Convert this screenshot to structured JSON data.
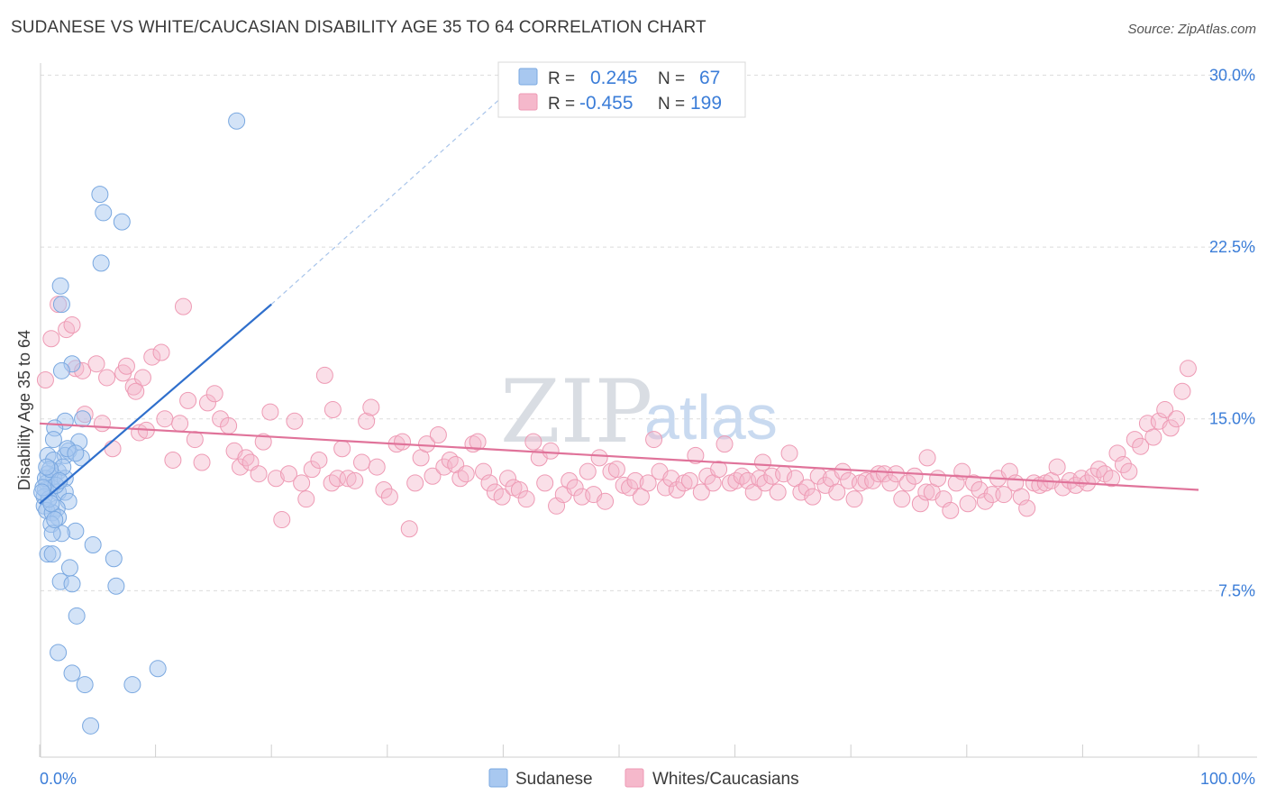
{
  "header": {
    "title": "SUDANESE VS WHITE/CAUCASIAN DISABILITY AGE 35 TO 64 CORRELATION CHART",
    "source": "Source: ZipAtlas.com"
  },
  "watermark": {
    "zip": "ZIP",
    "atlas": "atlas"
  },
  "stats": [
    {
      "r_label": "R =",
      "r_value": "0.245",
      "n_label": "N =",
      "n_value": "67",
      "color": "#a8c8f0"
    },
    {
      "r_label": "R =",
      "r_value": "-0.455",
      "n_label": "N =",
      "n_value": "199",
      "color": "#f5b8cb"
    }
  ],
  "chart_data": {
    "type": "scatter",
    "title": "SUDANESE VS WHITE/CAUCASIAN DISABILITY AGE 35 TO 64 CORRELATION CHART",
    "xlabel": "",
    "ylabel": "Disability Age 35 to 64",
    "xlim": [
      0,
      100
    ],
    "ylim": [
      0,
      31
    ],
    "x_tick_labels": [
      "0.0%",
      "100.0%"
    ],
    "y_ticks": [
      7.5,
      15.0,
      22.5,
      30.0
    ],
    "y_tick_labels": [
      "7.5%",
      "15.0%",
      "22.5%",
      "30.0%"
    ],
    "grid": true,
    "legend_position": "bottom",
    "series": [
      {
        "name": "Sudanese",
        "color": "#a8c8f0",
        "stroke": "#7aa8e0",
        "trend": {
          "x": [
            0,
            20
          ],
          "y": [
            11.3,
            20.0
          ],
          "color": "#2f6fcc",
          "dashed_extension_to": [
            42,
            30.0
          ]
        },
        "points": [
          [
            17,
            28
          ],
          [
            5.2,
            24.8
          ],
          [
            5.5,
            24.0
          ],
          [
            7.1,
            23.6
          ],
          [
            5.3,
            21.8
          ],
          [
            1.8,
            20.8
          ],
          [
            1.9,
            20.0
          ],
          [
            2.8,
            17.4
          ],
          [
            1.9,
            17.1
          ],
          [
            2.2,
            14.9
          ],
          [
            3.7,
            15.0
          ],
          [
            1.3,
            14.6
          ],
          [
            1.2,
            14.1
          ],
          [
            3.4,
            14.0
          ],
          [
            2.5,
            13.6
          ],
          [
            2.2,
            13.4
          ],
          [
            0.7,
            13.4
          ],
          [
            1.2,
            13.2
          ],
          [
            3.6,
            13.3
          ],
          [
            1.6,
            12.7
          ],
          [
            0.7,
            12.6
          ],
          [
            1.2,
            12.5
          ],
          [
            2.2,
            12.4
          ],
          [
            0.6,
            12.2
          ],
          [
            1.0,
            12.0
          ],
          [
            0.5,
            11.9
          ],
          [
            1.6,
            11.8
          ],
          [
            2.2,
            11.8
          ],
          [
            0.4,
            11.6
          ],
          [
            2.5,
            11.4
          ],
          [
            0.4,
            11.2
          ],
          [
            1.5,
            11.1
          ],
          [
            0.6,
            11.0
          ],
          [
            1.1,
            10.9
          ],
          [
            1.6,
            10.7
          ],
          [
            1.0,
            10.4
          ],
          [
            3.1,
            10.1
          ],
          [
            1.9,
            10.0
          ],
          [
            1.1,
            10.0
          ],
          [
            4.6,
            9.5
          ],
          [
            0.7,
            9.1
          ],
          [
            1.1,
            9.1
          ],
          [
            6.4,
            8.9
          ],
          [
            2.6,
            8.5
          ],
          [
            1.8,
            7.9
          ],
          [
            2.8,
            7.8
          ],
          [
            6.6,
            7.7
          ],
          [
            3.2,
            6.4
          ],
          [
            1.6,
            4.8
          ],
          [
            2.8,
            3.9
          ],
          [
            3.9,
            3.4
          ],
          [
            8.0,
            3.4
          ],
          [
            10.2,
            4.1
          ],
          [
            4.4,
            1.6
          ],
          [
            0.5,
            12.4
          ],
          [
            1.4,
            12.1
          ],
          [
            0.8,
            11.5
          ],
          [
            2.0,
            12.9
          ],
          [
            0.3,
            12.0
          ],
          [
            1.3,
            10.6
          ],
          [
            0.9,
            12.8
          ],
          [
            2.4,
            13.7
          ],
          [
            1.7,
            12.3
          ],
          [
            0.6,
            12.9
          ],
          [
            3.1,
            13.5
          ],
          [
            0.2,
            11.8
          ],
          [
            1.0,
            11.3
          ]
        ]
      },
      {
        "name": "Whites/Caucasians",
        "color": "#f5b8cb",
        "stroke": "#ee9ab4",
        "trend": {
          "x": [
            0,
            100
          ],
          "y": [
            14.8,
            11.9
          ],
          "color": "#e0739a"
        },
        "points": [
          [
            0.5,
            16.7
          ],
          [
            1.0,
            18.5
          ],
          [
            1.6,
            20.0
          ],
          [
            2.3,
            18.9
          ],
          [
            2.8,
            19.1
          ],
          [
            3.1,
            17.2
          ],
          [
            3.7,
            17.1
          ],
          [
            4.9,
            17.4
          ],
          [
            5.8,
            16.8
          ],
          [
            7.2,
            17.0
          ],
          [
            7.5,
            17.3
          ],
          [
            8.1,
            16.4
          ],
          [
            8.9,
            16.8
          ],
          [
            9.7,
            17.7
          ],
          [
            10.5,
            17.9
          ],
          [
            12.4,
            19.9
          ],
          [
            3.9,
            15.2
          ],
          [
            5.4,
            14.8
          ],
          [
            6.3,
            13.7
          ],
          [
            8.6,
            14.4
          ],
          [
            9.2,
            14.5
          ],
          [
            10.8,
            15.0
          ],
          [
            11.5,
            13.2
          ],
          [
            12.1,
            14.8
          ],
          [
            12.8,
            15.8
          ],
          [
            13.4,
            14.1
          ],
          [
            14.0,
            13.1
          ],
          [
            14.5,
            15.7
          ],
          [
            15.1,
            16.1
          ],
          [
            15.6,
            15.0
          ],
          [
            16.3,
            14.7
          ],
          [
            16.8,
            13.6
          ],
          [
            17.3,
            12.9
          ],
          [
            17.8,
            13.3
          ],
          [
            18.2,
            13.1
          ],
          [
            18.9,
            12.6
          ],
          [
            19.3,
            14.0
          ],
          [
            19.9,
            15.3
          ],
          [
            20.4,
            12.4
          ],
          [
            20.9,
            10.6
          ],
          [
            21.5,
            12.6
          ],
          [
            22.0,
            14.9
          ],
          [
            22.6,
            12.2
          ],
          [
            23.0,
            11.5
          ],
          [
            23.5,
            12.8
          ],
          [
            24.1,
            13.2
          ],
          [
            24.6,
            16.9
          ],
          [
            25.2,
            12.2
          ],
          [
            25.7,
            12.4
          ],
          [
            26.1,
            13.7
          ],
          [
            26.6,
            12.4
          ],
          [
            27.2,
            12.3
          ],
          [
            27.8,
            13.1
          ],
          [
            28.2,
            14.9
          ],
          [
            28.6,
            15.5
          ],
          [
            29.1,
            12.9
          ],
          [
            29.7,
            11.9
          ],
          [
            30.2,
            11.6
          ],
          [
            30.8,
            13.9
          ],
          [
            31.3,
            14.0
          ],
          [
            31.9,
            10.2
          ],
          [
            32.4,
            12.2
          ],
          [
            32.9,
            13.3
          ],
          [
            33.4,
            13.9
          ],
          [
            33.9,
            12.5
          ],
          [
            34.4,
            14.3
          ],
          [
            34.9,
            12.9
          ],
          [
            35.4,
            13.2
          ],
          [
            35.9,
            13.0
          ],
          [
            36.3,
            12.4
          ],
          [
            36.8,
            12.6
          ],
          [
            37.4,
            13.9
          ],
          [
            37.8,
            14.0
          ],
          [
            38.3,
            12.7
          ],
          [
            38.8,
            12.2
          ],
          [
            39.3,
            11.8
          ],
          [
            39.9,
            11.6
          ],
          [
            40.4,
            12.4
          ],
          [
            40.9,
            12.0
          ],
          [
            41.4,
            11.9
          ],
          [
            42.0,
            11.5
          ],
          [
            42.6,
            14.0
          ],
          [
            43.1,
            13.3
          ],
          [
            43.6,
            12.2
          ],
          [
            44.1,
            13.6
          ],
          [
            44.6,
            11.2
          ],
          [
            45.2,
            11.7
          ],
          [
            45.7,
            12.3
          ],
          [
            46.2,
            12.0
          ],
          [
            46.8,
            11.6
          ],
          [
            47.3,
            12.7
          ],
          [
            47.8,
            11.7
          ],
          [
            48.3,
            13.3
          ],
          [
            48.8,
            11.4
          ],
          [
            49.3,
            12.7
          ],
          [
            49.8,
            12.8
          ],
          [
            50.4,
            12.1
          ],
          [
            50.9,
            12.0
          ],
          [
            51.4,
            12.3
          ],
          [
            51.9,
            11.6
          ],
          [
            52.5,
            12.2
          ],
          [
            53.0,
            14.1
          ],
          [
            53.5,
            12.7
          ],
          [
            54.0,
            12.0
          ],
          [
            54.5,
            12.4
          ],
          [
            55.0,
            11.9
          ],
          [
            55.6,
            12.2
          ],
          [
            56.1,
            12.3
          ],
          [
            56.6,
            13.4
          ],
          [
            57.1,
            11.8
          ],
          [
            57.6,
            12.5
          ],
          [
            58.1,
            12.2
          ],
          [
            58.6,
            12.8
          ],
          [
            59.1,
            13.9
          ],
          [
            59.6,
            12.2
          ],
          [
            60.1,
            12.3
          ],
          [
            60.6,
            12.5
          ],
          [
            61.1,
            12.3
          ],
          [
            61.6,
            11.8
          ],
          [
            62.1,
            12.4
          ],
          [
            62.6,
            12.2
          ],
          [
            63.2,
            12.5
          ],
          [
            63.7,
            11.8
          ],
          [
            64.2,
            12.6
          ],
          [
            64.7,
            13.5
          ],
          [
            65.2,
            12.4
          ],
          [
            65.7,
            11.8
          ],
          [
            66.2,
            12.0
          ],
          [
            66.7,
            11.6
          ],
          [
            67.2,
            12.5
          ],
          [
            67.8,
            12.1
          ],
          [
            68.3,
            12.4
          ],
          [
            68.8,
            11.8
          ],
          [
            69.3,
            12.7
          ],
          [
            69.8,
            12.3
          ],
          [
            70.3,
            11.5
          ],
          [
            70.8,
            12.2
          ],
          [
            71.3,
            12.3
          ],
          [
            71.9,
            12.3
          ],
          [
            72.4,
            12.6
          ],
          [
            72.9,
            12.6
          ],
          [
            73.4,
            12.2
          ],
          [
            73.9,
            12.6
          ],
          [
            74.4,
            11.5
          ],
          [
            74.9,
            12.2
          ],
          [
            75.5,
            12.5
          ],
          [
            76.0,
            11.3
          ],
          [
            76.5,
            11.8
          ],
          [
            77.0,
            11.8
          ],
          [
            77.5,
            12.4
          ],
          [
            78.0,
            11.5
          ],
          [
            78.6,
            11.0
          ],
          [
            79.1,
            12.2
          ],
          [
            79.6,
            12.7
          ],
          [
            80.1,
            11.3
          ],
          [
            80.6,
            12.2
          ],
          [
            81.1,
            11.9
          ],
          [
            81.6,
            11.4
          ],
          [
            82.2,
            11.7
          ],
          [
            82.7,
            12.4
          ],
          [
            83.2,
            11.7
          ],
          [
            83.7,
            12.7
          ],
          [
            84.2,
            12.2
          ],
          [
            84.7,
            11.6
          ],
          [
            85.2,
            11.1
          ],
          [
            85.8,
            12.2
          ],
          [
            86.3,
            12.1
          ],
          [
            86.8,
            12.2
          ],
          [
            87.3,
            12.3
          ],
          [
            87.8,
            12.9
          ],
          [
            88.3,
            12.0
          ],
          [
            88.9,
            12.3
          ],
          [
            89.4,
            12.1
          ],
          [
            89.9,
            12.4
          ],
          [
            90.4,
            12.2
          ],
          [
            90.9,
            12.5
          ],
          [
            91.4,
            12.8
          ],
          [
            91.9,
            12.6
          ],
          [
            92.5,
            12.4
          ],
          [
            93.0,
            13.5
          ],
          [
            93.5,
            13.0
          ],
          [
            94.0,
            12.7
          ],
          [
            94.5,
            14.1
          ],
          [
            95.0,
            13.8
          ],
          [
            95.6,
            14.8
          ],
          [
            96.1,
            14.2
          ],
          [
            96.6,
            14.9
          ],
          [
            97.1,
            15.4
          ],
          [
            97.6,
            14.6
          ],
          [
            98.1,
            15.0
          ],
          [
            98.6,
            16.2
          ],
          [
            99.1,
            17.2
          ],
          [
            76.6,
            13.3
          ],
          [
            62.4,
            13.1
          ],
          [
            25.3,
            15.4
          ],
          [
            8.3,
            16.2
          ]
        ]
      }
    ]
  },
  "legend": [
    {
      "label": "Sudanese",
      "color": "#a8c8f0"
    },
    {
      "label": "Whites/Caucasians",
      "color": "#f5b8cb"
    }
  ]
}
